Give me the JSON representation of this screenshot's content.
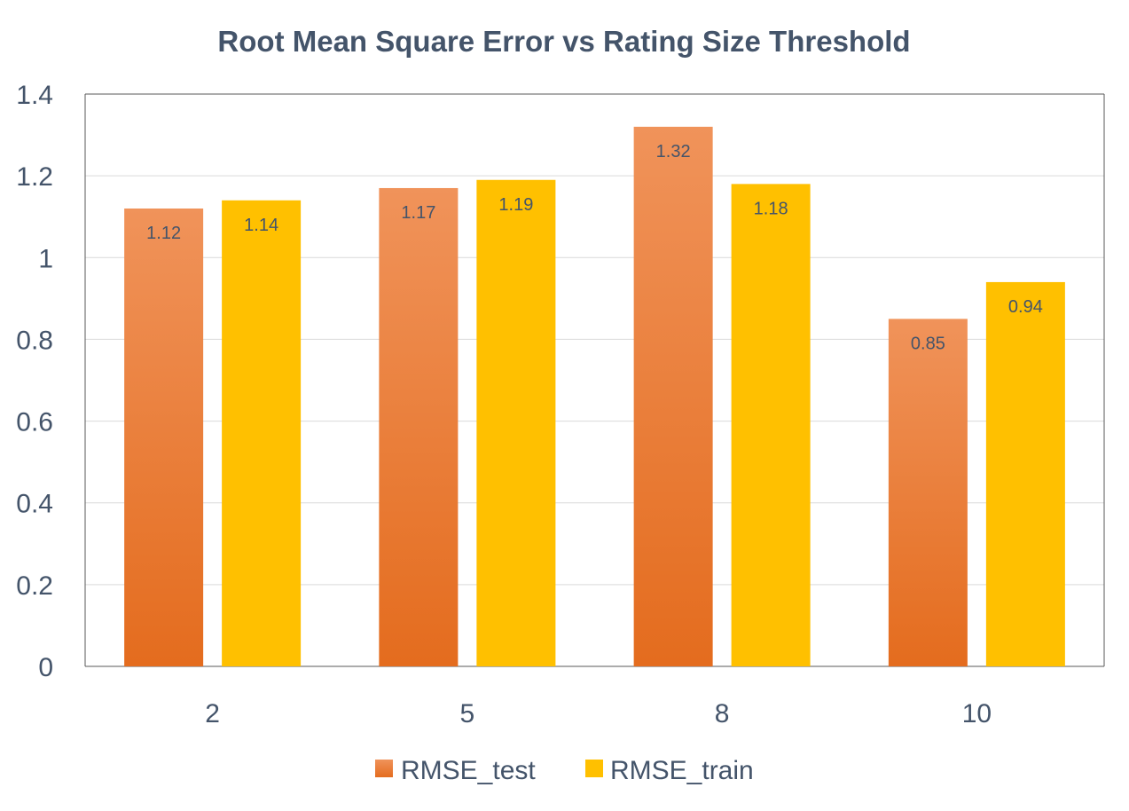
{
  "chart_data": {
    "type": "bar",
    "title": "Root Mean Square Error vs Rating Size Threshold",
    "xlabel": "",
    "ylabel": "",
    "categories": [
      "2",
      "5",
      "8",
      "10"
    ],
    "series": [
      {
        "name": "RMSE_test",
        "values": [
          1.12,
          1.17,
          1.32,
          0.85
        ],
        "labels": [
          "1.12",
          "1.17",
          "1.32",
          "0.85"
        ],
        "color": "#ED7D31",
        "color_light": "#F0935A",
        "color_dark": "#E46C1E"
      },
      {
        "name": "RMSE_train",
        "values": [
          1.14,
          1.19,
          1.18,
          0.94
        ],
        "labels": [
          "1.14",
          "1.19",
          "1.18",
          "0.94"
        ],
        "color": "#FFC000"
      }
    ],
    "ylim": [
      0,
      1.4
    ],
    "yticks": [
      "0",
      "0.2",
      "0.4",
      "0.6",
      "0.8",
      "1",
      "1.2",
      "1.4"
    ],
    "grid": true,
    "legend": "bottom"
  }
}
